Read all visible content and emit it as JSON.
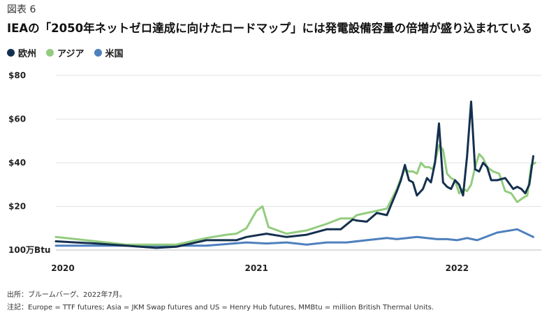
{
  "figure_label": "図表 6",
  "title": "IEAの「2050年ネットゼロ達成に向けたロードマップ」には発電設備容量の倍増が盛り込まれている",
  "colors": {
    "europe": "#14304f",
    "asia": "#93cc7e",
    "us": "#4e80bd",
    "grid": "#e3e3e3",
    "axis": "#bdbdbd"
  },
  "chart_data": {
    "type": "line",
    "title": "IEAの「2050年ネットゼロ達成に向けたロードマップ」には発電設備容量の倍増が盛り込まれている",
    "xlabel": "",
    "ylabel": "100万Btu",
    "xlim": [
      2020.0,
      2022.42
    ],
    "ylim": [
      0,
      80
    ],
    "y_ticks": [
      20,
      40,
      60,
      80
    ],
    "y_tick_labels": [
      "$20",
      "$40",
      "$60",
      "$80"
    ],
    "y_unit_label": "100万Btu",
    "x_ticks": [
      2020,
      2021,
      2022
    ],
    "x_tick_labels": [
      "2020",
      "2021",
      "2022"
    ],
    "grid": true,
    "legend": "top-left",
    "series": [
      {
        "name": "欧州",
        "color": "#14304f",
        "x": [
          2020.0,
          2020.1,
          2020.2,
          2020.35,
          2020.5,
          2020.6,
          2020.75,
          2020.9,
          2020.95,
          2021.05,
          2021.15,
          2021.25,
          2021.35,
          2021.42,
          2021.48,
          2021.5,
          2021.55,
          2021.6,
          2021.65,
          2021.7,
          2021.72,
          2021.74,
          2021.76,
          2021.78,
          2021.8,
          2021.83,
          2021.85,
          2021.87,
          2021.89,
          2021.91,
          2021.93,
          2021.95,
          2021.97,
          2021.99,
          2022.01,
          2022.03,
          2022.05,
          2022.07,
          2022.09,
          2022.11,
          2022.13,
          2022.15,
          2022.17,
          2022.2,
          2022.24,
          2022.28,
          2022.3,
          2022.32,
          2022.34,
          2022.36,
          2022.38
        ],
        "values": [
          4,
          3.5,
          3,
          2,
          1,
          1.5,
          4.5,
          4.5,
          6,
          7.5,
          6,
          7,
          9.5,
          9.5,
          14,
          13.5,
          13,
          17,
          16,
          27,
          32,
          39,
          32,
          31,
          25,
          28,
          33,
          31,
          40,
          58,
          31,
          29,
          28,
          32,
          30,
          25,
          43,
          68,
          37,
          36,
          40,
          38,
          32,
          32,
          33,
          28,
          29,
          28,
          26,
          30,
          43
        ]
      },
      {
        "name": "アジア",
        "color": "#93cc7e",
        "x": [
          2020.0,
          2020.1,
          2020.2,
          2020.35,
          2020.5,
          2020.6,
          2020.75,
          2020.85,
          2020.9,
          2020.95,
          2021.0,
          2021.03,
          2021.06,
          2021.15,
          2021.25,
          2021.35,
          2021.42,
          2021.48,
          2021.5,
          2021.55,
          2021.6,
          2021.65,
          2021.7,
          2021.72,
          2021.74,
          2021.76,
          2021.78,
          2021.8,
          2021.82,
          2021.84,
          2021.86,
          2021.88,
          2021.91,
          2021.93,
          2021.95,
          2021.97,
          2021.99,
          2022.01,
          2022.03,
          2022.05,
          2022.07,
          2022.09,
          2022.11,
          2022.13,
          2022.15,
          2022.18,
          2022.21,
          2022.24,
          2022.27,
          2022.3,
          2022.33,
          2022.35,
          2022.37,
          2022.39
        ],
        "values": [
          6,
          5,
          4,
          2.5,
          2.5,
          2.5,
          5.5,
          7,
          7.5,
          10,
          18,
          20,
          10.5,
          7.5,
          9,
          12,
          14.5,
          14.5,
          16,
          17,
          18,
          19,
          28,
          33,
          37,
          36,
          36,
          35,
          40,
          38,
          38,
          37,
          48,
          46,
          35,
          33,
          32,
          26,
          28,
          27,
          30,
          38,
          44,
          42,
          38,
          36,
          35,
          27,
          26,
          22,
          24,
          25,
          39,
          40
        ]
      },
      {
        "name": "米国",
        "color": "#4e80bd",
        "x": [
          2020.0,
          2020.25,
          2020.5,
          2020.75,
          2020.95,
          2021.05,
          2021.15,
          2021.25,
          2021.35,
          2021.45,
          2021.55,
          2021.65,
          2021.7,
          2021.8,
          2021.9,
          2021.95,
          2022.0,
          2022.05,
          2022.1,
          2022.2,
          2022.3,
          2022.38
        ],
        "values": [
          2,
          2,
          2,
          2,
          3.5,
          3,
          3.5,
          2.5,
          3.5,
          3.5,
          4.5,
          5.5,
          5,
          6,
          5,
          5,
          4.5,
          5.5,
          4.5,
          8,
          9.5,
          6
        ]
      }
    ]
  },
  "notes": {
    "source": "出所：ブルームバーグ、2022年7月。",
    "note": "注記：Europe = TTF futures; Asia = JKM Swap futures and US = Henry Hub futures, MMBtu = million British Thermal Units."
  }
}
